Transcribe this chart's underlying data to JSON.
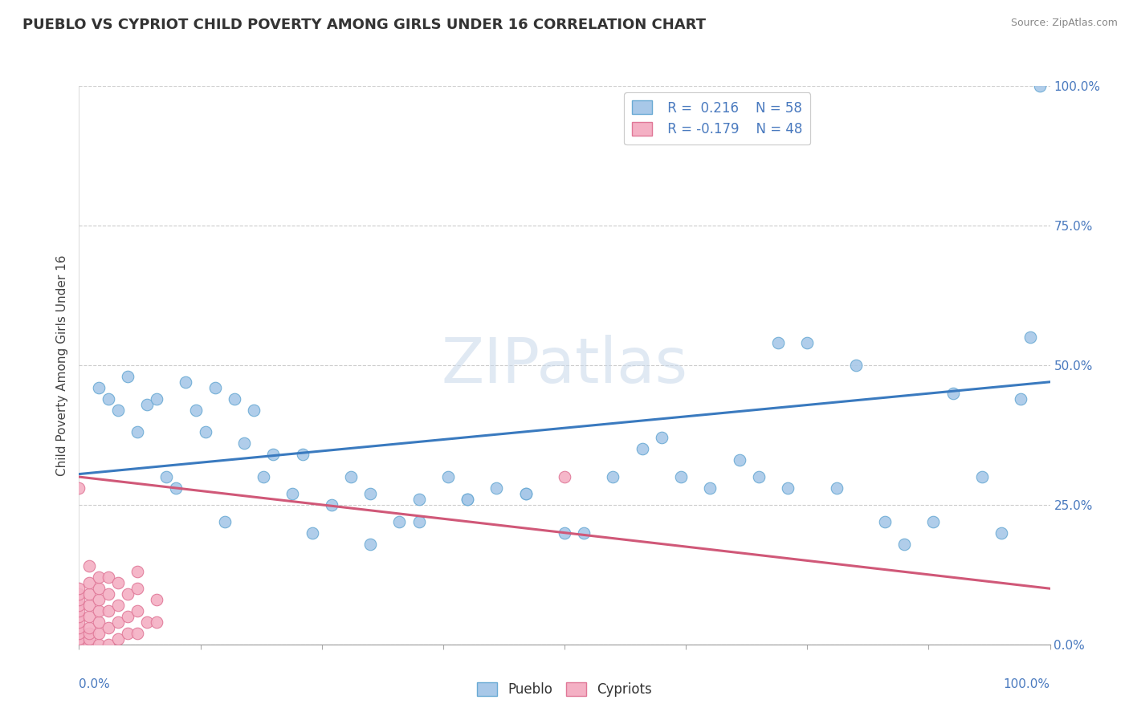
{
  "title": "PUEBLO VS CYPRIOT CHILD POVERTY AMONG GIRLS UNDER 16 CORRELATION CHART",
  "source": "Source: ZipAtlas.com",
  "ylabel": "Child Poverty Among Girls Under 16",
  "xlim": [
    0,
    1
  ],
  "ylim": [
    0,
    1
  ],
  "ytick_labels": [
    "0.0%",
    "25.0%",
    "50.0%",
    "75.0%",
    "100.0%"
  ],
  "ytick_values": [
    0.0,
    0.25,
    0.5,
    0.75,
    1.0
  ],
  "xtick_labels": [
    "0.0%",
    "100.0%"
  ],
  "xtick_values": [
    0.0,
    1.0
  ],
  "pueblo_color": "#a8c8e8",
  "pueblo_edge_color": "#6aaad4",
  "cypriot_color": "#f4b0c4",
  "cypriot_edge_color": "#e07898",
  "trend_blue_color": "#3a7abf",
  "trend_pink_color": "#d05878",
  "watermark_text": "ZIPatlas",
  "legend_r_blue": " R =  0.216",
  "legend_n_blue": " N = 58",
  "legend_r_pink": " R = -0.179",
  "legend_n_pink": " N = 48",
  "bottom_legend_pueblo": "Pueblo",
  "bottom_legend_cypriot": "Cypriots",
  "pueblo_x": [
    0.02,
    0.03,
    0.04,
    0.05,
    0.06,
    0.07,
    0.08,
    0.09,
    0.1,
    0.11,
    0.12,
    0.13,
    0.14,
    0.15,
    0.16,
    0.17,
    0.18,
    0.19,
    0.2,
    0.22,
    0.23,
    0.24,
    0.26,
    0.28,
    0.3,
    0.33,
    0.35,
    0.38,
    0.4,
    0.43,
    0.46,
    0.5,
    0.55,
    0.58,
    0.62,
    0.65,
    0.68,
    0.7,
    0.73,
    0.75,
    0.78,
    0.8,
    0.83,
    0.85,
    0.88,
    0.9,
    0.93,
    0.95,
    0.97,
    0.98,
    0.3,
    0.35,
    0.4,
    0.46,
    0.52,
    0.6,
    0.72,
    0.99
  ],
  "pueblo_y": [
    0.46,
    0.44,
    0.42,
    0.48,
    0.38,
    0.43,
    0.44,
    0.3,
    0.28,
    0.47,
    0.42,
    0.38,
    0.46,
    0.22,
    0.44,
    0.36,
    0.42,
    0.3,
    0.34,
    0.27,
    0.34,
    0.2,
    0.25,
    0.3,
    0.27,
    0.22,
    0.26,
    0.3,
    0.26,
    0.28,
    0.27,
    0.2,
    0.3,
    0.35,
    0.3,
    0.28,
    0.33,
    0.3,
    0.28,
    0.54,
    0.28,
    0.5,
    0.22,
    0.18,
    0.22,
    0.45,
    0.3,
    0.2,
    0.44,
    0.55,
    0.18,
    0.22,
    0.26,
    0.27,
    0.2,
    0.37,
    0.54,
    1.0
  ],
  "cypriot_x": [
    0.0,
    0.0,
    0.0,
    0.0,
    0.0,
    0.0,
    0.0,
    0.0,
    0.0,
    0.0,
    0.0,
    0.0,
    0.01,
    0.01,
    0.01,
    0.01,
    0.01,
    0.01,
    0.01,
    0.01,
    0.01,
    0.02,
    0.02,
    0.02,
    0.02,
    0.02,
    0.02,
    0.02,
    0.03,
    0.03,
    0.03,
    0.03,
    0.03,
    0.04,
    0.04,
    0.04,
    0.04,
    0.05,
    0.05,
    0.05,
    0.06,
    0.06,
    0.06,
    0.06,
    0.07,
    0.08,
    0.08,
    0.5
  ],
  "cypriot_y": [
    0.0,
    0.01,
    0.02,
    0.03,
    0.04,
    0.05,
    0.06,
    0.07,
    0.08,
    0.09,
    0.1,
    0.28,
    0.0,
    0.01,
    0.02,
    0.03,
    0.05,
    0.07,
    0.09,
    0.11,
    0.14,
    0.0,
    0.02,
    0.04,
    0.06,
    0.08,
    0.1,
    0.12,
    0.0,
    0.03,
    0.06,
    0.09,
    0.12,
    0.01,
    0.04,
    0.07,
    0.11,
    0.02,
    0.05,
    0.09,
    0.02,
    0.06,
    0.1,
    0.13,
    0.04,
    0.04,
    0.08,
    0.3
  ],
  "pueblo_trend_x": [
    0.0,
    1.0
  ],
  "pueblo_trend_y": [
    0.305,
    0.47
  ],
  "cypriot_trend_x": [
    0.0,
    1.0
  ],
  "cypriot_trend_y": [
    0.3,
    0.1
  ]
}
